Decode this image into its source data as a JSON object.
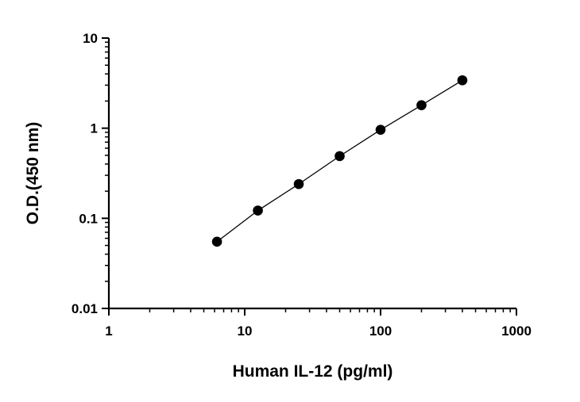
{
  "chart_data": {
    "type": "line",
    "xlabel": "Human IL-12 (pg/ml)",
    "ylabel": "O.D.(450 nm)",
    "x_scale": "log",
    "y_scale": "log",
    "xlim": [
      1,
      1000
    ],
    "ylim": [
      0.01,
      10
    ],
    "x_ticks": [
      "1",
      "10",
      "100",
      "1000"
    ],
    "y_ticks": [
      "0.01",
      "0.1",
      "1",
      "10"
    ],
    "grid": false,
    "legend": "none",
    "series": [
      {
        "color": "#000000",
        "marker": "circle",
        "x": [
          6.25,
          12.5,
          25,
          50,
          100,
          200,
          400
        ],
        "y": [
          0.055,
          0.122,
          0.24,
          0.49,
          0.96,
          1.8,
          3.4
        ]
      }
    ]
  }
}
